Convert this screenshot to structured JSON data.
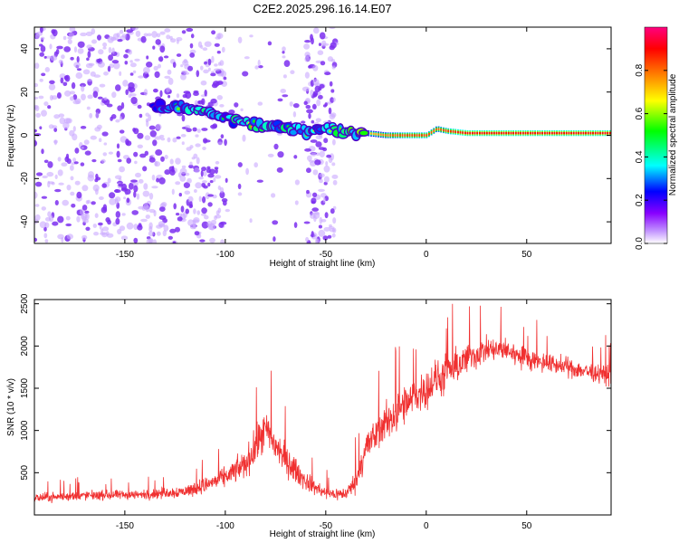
{
  "title": "C2E2.2025.296.16.14.E07",
  "colors": {
    "signal_line": "#f03030",
    "ridge": "#ff2020",
    "scatter": "#7d2ff0",
    "frame": "#000000"
  },
  "chart_data": [
    {
      "type": "heatmap",
      "title": "C2E2.2025.296.16.14.E07",
      "xlabel": "Height of straight line (km)",
      "ylabel": "Frequency (Hz)",
      "xlim": [
        -195,
        92
      ],
      "ylim": [
        -50,
        50
      ],
      "xticks": [
        -150,
        -100,
        -50,
        0,
        50
      ],
      "xtick_labels": [
        "-150",
        "-100",
        "-50",
        "0",
        "50"
      ],
      "yticks": [
        -40,
        -20,
        0,
        20,
        40
      ],
      "ytick_labels": [
        "-40",
        "-20",
        "0",
        "20",
        "40"
      ],
      "colorbar": {
        "label": "Normalized spectral amplitude",
        "range": [
          0,
          1
        ],
        "ticks": [
          0.0,
          0.2,
          0.4,
          0.6,
          0.8
        ],
        "tick_labels": [
          "0.0",
          "0.2",
          "0.4",
          "0.6",
          "0.8"
        ],
        "colormap": [
          "#ffffff",
          "#8800ff",
          "#0000ff",
          "#00ffff",
          "#00ff00",
          "#ffff00",
          "#ff8000",
          "#ff0000",
          "#ff0080"
        ]
      },
      "ridge": {
        "x": [
          -135,
          -120,
          -110,
          -100,
          -90,
          -80,
          -70,
          -60,
          -50,
          -40,
          -30,
          -20,
          -10,
          0,
          5,
          10,
          20,
          40,
          60,
          80,
          92
        ],
        "freq": [
          13,
          13,
          11,
          8,
          6,
          4,
          3,
          2,
          3,
          2,
          1,
          0,
          0,
          0,
          3,
          2,
          1,
          1,
          1,
          1,
          1
        ],
        "amplitude": [
          0.3,
          0.4,
          0.45,
          0.4,
          0.5,
          0.5,
          0.5,
          0.4,
          0.45,
          0.5,
          0.7,
          0.8,
          0.85,
          0.85,
          0.8,
          0.85,
          0.9,
          0.9,
          0.9,
          0.9,
          0.9
        ]
      },
      "noise_regions": [
        {
          "x_range": [
            -195,
            -100
          ],
          "density": "high",
          "freq_range": [
            -50,
            50
          ]
        },
        {
          "x_range": [
            -60,
            -45
          ],
          "density": "medium",
          "freq_range": [
            -50,
            50
          ]
        },
        {
          "x_range": [
            -100,
            -60
          ],
          "density": "low",
          "freq_range": [
            -50,
            50
          ]
        }
      ]
    },
    {
      "type": "line",
      "xlabel": "Height of straight line (km)",
      "ylabel": "SNR (10 * v/v)",
      "xlim": [
        -195,
        92
      ],
      "ylim": [
        0,
        2550
      ],
      "xticks": [
        -150,
        -100,
        -50,
        0,
        50
      ],
      "xtick_labels": [
        "-150",
        "-100",
        "-50",
        "0",
        "50"
      ],
      "yticks": [
        500,
        1000,
        1500,
        2000,
        2500
      ],
      "ytick_labels": [
        "500",
        "1000",
        "1500",
        "2000",
        "2500"
      ],
      "series": [
        {
          "name": "SNR",
          "x": [
            -195,
            -170,
            -140,
            -120,
            -110,
            -100,
            -90,
            -85,
            -80,
            -70,
            -60,
            -50,
            -40,
            -35,
            -30,
            -20,
            -10,
            0,
            5,
            10,
            15,
            20,
            30,
            40,
            50,
            60,
            70,
            80,
            92
          ],
          "y": [
            200,
            230,
            240,
            280,
            350,
            450,
            600,
            800,
            1000,
            650,
            400,
            250,
            250,
            400,
            800,
            1100,
            1300,
            1500,
            1600,
            1650,
            1750,
            1850,
            1950,
            1950,
            1850,
            1800,
            1750,
            1700,
            1650
          ],
          "spread": [
            150,
            150,
            150,
            200,
            250,
            300,
            450,
            600,
            650,
            500,
            300,
            200,
            200,
            350,
            550,
            600,
            650,
            600,
            650,
            600,
            550,
            500,
            400,
            350,
            350,
            300,
            300,
            300,
            300
          ]
        }
      ]
    }
  ]
}
